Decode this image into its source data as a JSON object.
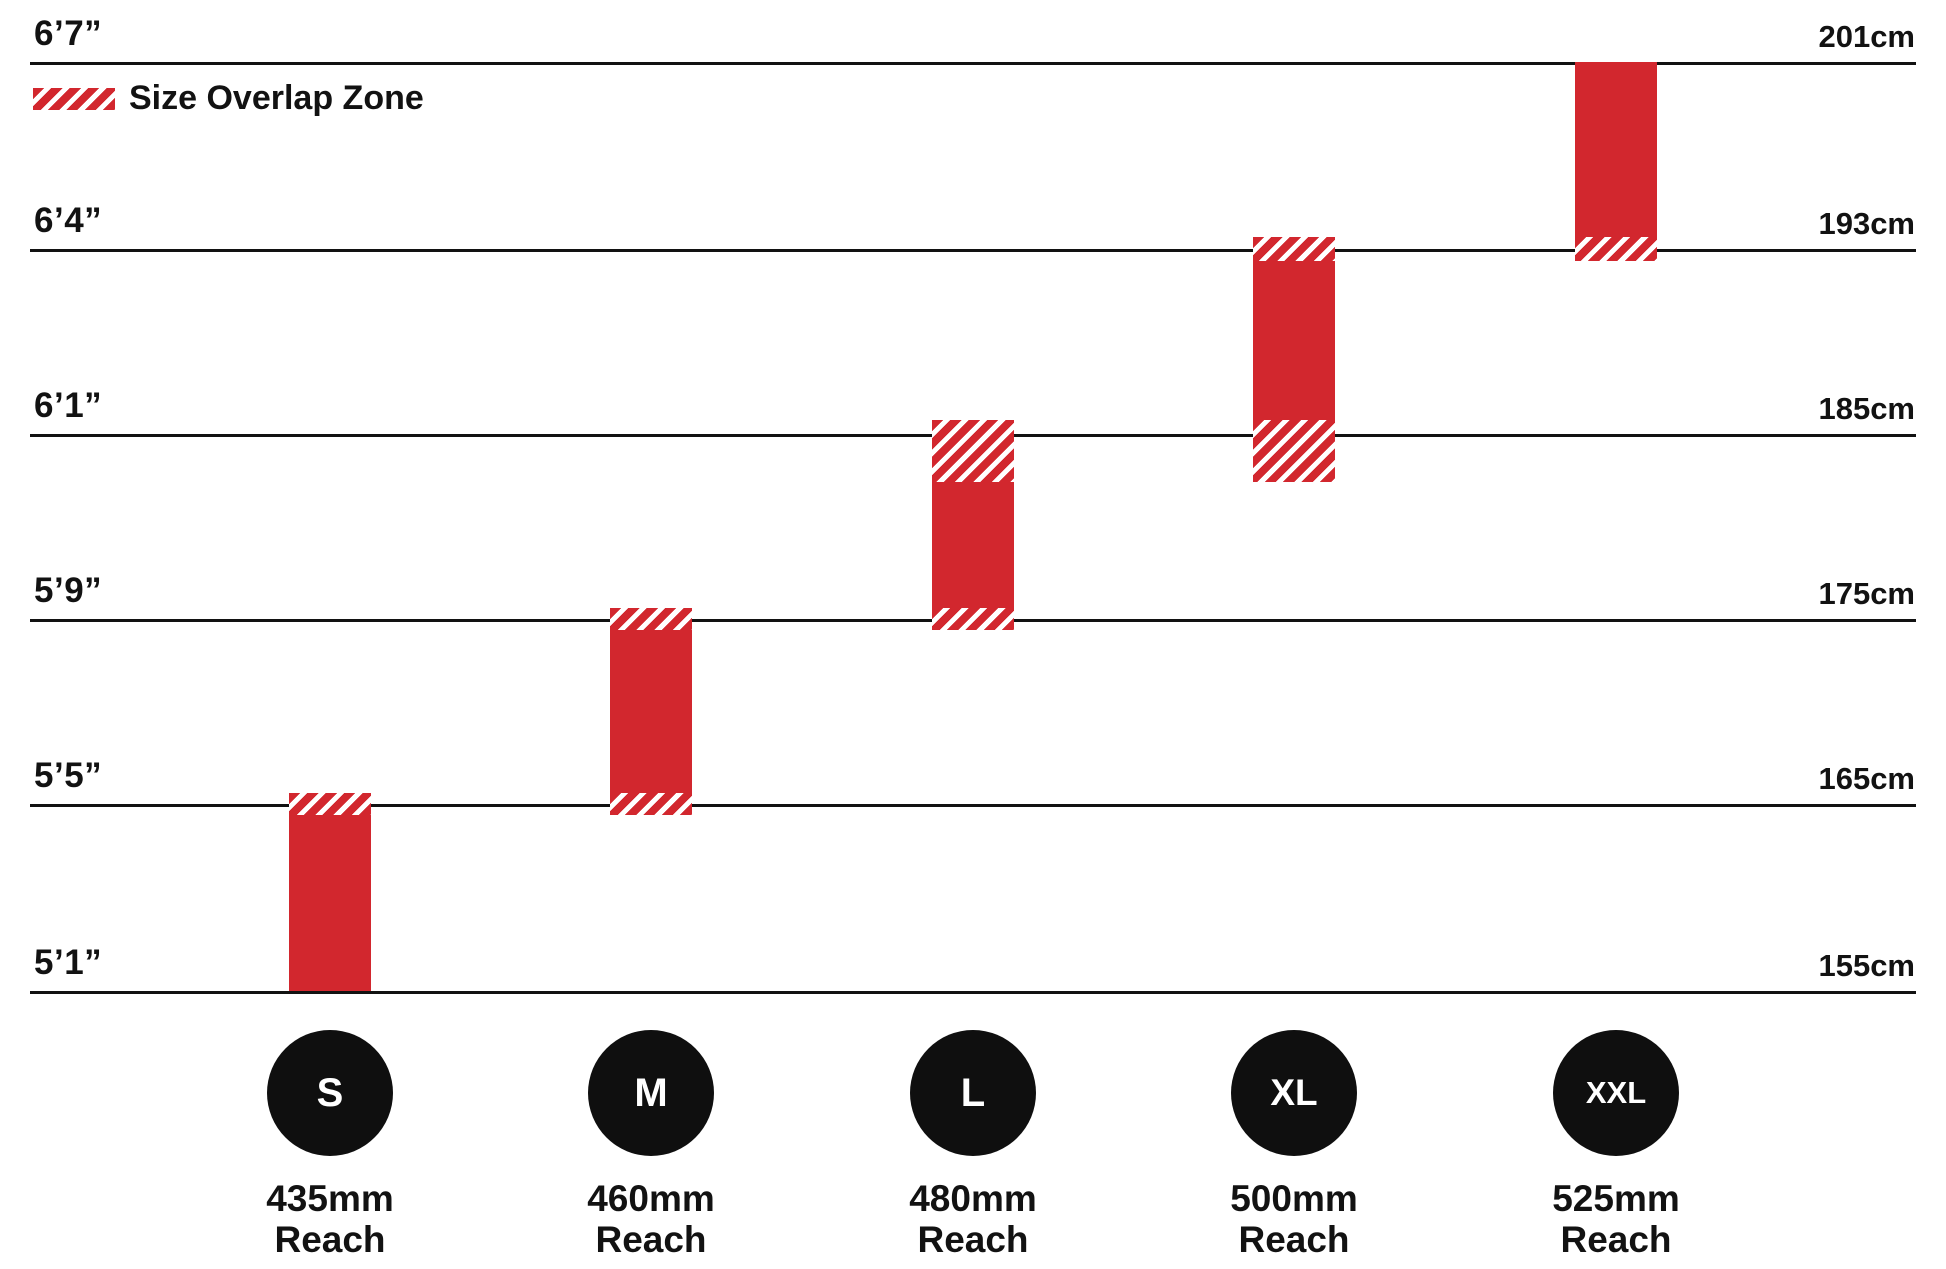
{
  "legend": {
    "label": "Size Overlap Zone"
  },
  "colors": {
    "red": "#d2272e",
    "ink": "#121212",
    "circle_fill": "#0f0f0f",
    "circle_text": "#ffffff"
  },
  "chart_data": {
    "type": "bar",
    "subtype": "floating-range-columns",
    "title": "",
    "legend_label": "Size Overlap Zone",
    "grid": "horizontal-lines",
    "y_axis_left_unit": "feet-inches",
    "y_axis_right_unit": "cm",
    "ylim_cm": [
      155,
      201
    ],
    "y_ticks": [
      {
        "imperial": "6’7”",
        "metric": "201cm",
        "cm": 201
      },
      {
        "imperial": "6’4”",
        "metric": "193cm",
        "cm": 193
      },
      {
        "imperial": "6’1”",
        "metric": "185cm",
        "cm": 185
      },
      {
        "imperial": "5’9”",
        "metric": "175cm",
        "cm": 175
      },
      {
        "imperial": "5’5”",
        "metric": "165cm",
        "cm": 165
      },
      {
        "imperial": "5’1”",
        "metric": "155cm",
        "cm": 155
      }
    ],
    "sizes": [
      {
        "label": "S",
        "reach": [
          "435mm",
          "Reach"
        ],
        "height_range_cm": [
          155,
          165.6
        ],
        "overlap_top_cm": [
          164.4,
          165.6
        ],
        "overlap_bottom_cm": null
      },
      {
        "label": "M",
        "reach": [
          "460mm",
          "Reach"
        ],
        "height_range_cm": [
          164.4,
          175.6
        ],
        "overlap_top_cm": [
          174.4,
          175.6
        ],
        "overlap_bottom_cm": [
          164.4,
          165.6
        ]
      },
      {
        "label": "L",
        "reach": [
          "480mm",
          "Reach"
        ],
        "height_range_cm": [
          174.4,
          185.6
        ],
        "overlap_top_cm": [
          182.4,
          185.6
        ],
        "overlap_bottom_cm": [
          174.4,
          175.6
        ]
      },
      {
        "label": "XL",
        "reach": [
          "500mm",
          "Reach"
        ],
        "height_range_cm": [
          182.4,
          193.5
        ],
        "overlap_top_cm": [
          192.5,
          193.5
        ],
        "overlap_bottom_cm": [
          182.4,
          185.6
        ]
      },
      {
        "label": "XXL",
        "reach": [
          "525mm",
          "Reach"
        ],
        "height_range_cm": [
          192.5,
          201
        ],
        "overlap_top_cm": null,
        "overlap_bottom_cm": [
          192.5,
          193.5
        ]
      }
    ]
  }
}
